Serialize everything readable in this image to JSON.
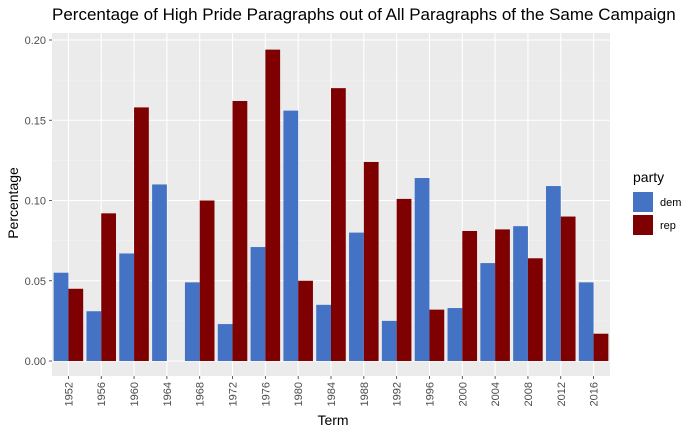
{
  "chart_data": {
    "type": "bar",
    "title": "Percentage of High Pride Paragraphs out of All Paragraphs of the Same Campaign",
    "xlabel": "Term",
    "ylabel": "Percentage",
    "ylim": [
      0,
      0.2
    ],
    "yticks": [
      "0.00",
      "0.05",
      "0.10",
      "0.15",
      "0.20"
    ],
    "grid": true,
    "legend": {
      "title": "party",
      "position": "right"
    },
    "categories": [
      "1952",
      "1956",
      "1960",
      "1964",
      "1968",
      "1972",
      "1976",
      "1980",
      "1984",
      "1988",
      "1992",
      "1996",
      "2000",
      "2004",
      "2008",
      "2012",
      "2016"
    ],
    "series": [
      {
        "name": "dem",
        "color": "#4472C4",
        "values": [
          0.055,
          0.031,
          0.067,
          0.11,
          0.049,
          0.023,
          0.071,
          0.156,
          0.035,
          0.08,
          0.025,
          0.114,
          0.033,
          0.061,
          0.084,
          0.109,
          0.049
        ]
      },
      {
        "name": "rep",
        "color": "#7F0000",
        "values": [
          0.045,
          0.092,
          0.158,
          0.0,
          0.1,
          0.162,
          0.194,
          0.05,
          0.17,
          0.124,
          0.101,
          0.032,
          0.081,
          0.082,
          0.064,
          0.09,
          0.017
        ]
      }
    ]
  }
}
